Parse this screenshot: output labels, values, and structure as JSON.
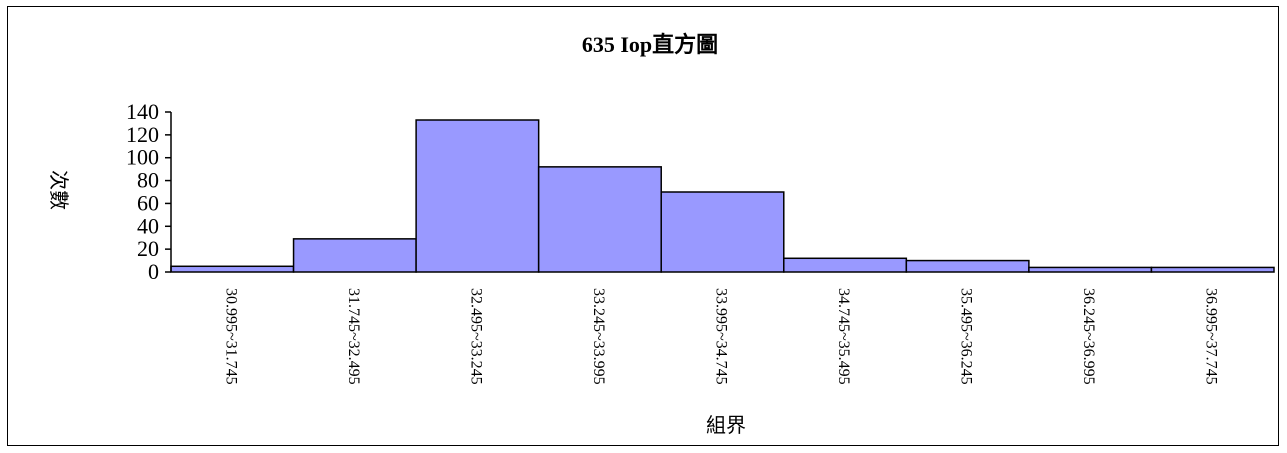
{
  "chart_data": {
    "type": "bar",
    "title": "635 Iop直方圖",
    "xlabel": "組界",
    "ylabel": "次數",
    "categories": [
      "30.995~31.745",
      "31.745~32.495",
      "32.495~33.245",
      "33.245~33.995",
      "33.995~34.745",
      "34.745~35.495",
      "35.495~36.245",
      "36.245~36.995",
      "36.995~37.745"
    ],
    "values": [
      5,
      29,
      133,
      92,
      70,
      12,
      10,
      4,
      4
    ],
    "ylim": [
      0,
      140
    ],
    "yticks": [
      0,
      20,
      40,
      60,
      80,
      100,
      120,
      140
    ],
    "grid": false,
    "colors": {
      "bar_fill": "#9999FF",
      "bar_stroke": "#000000"
    }
  }
}
